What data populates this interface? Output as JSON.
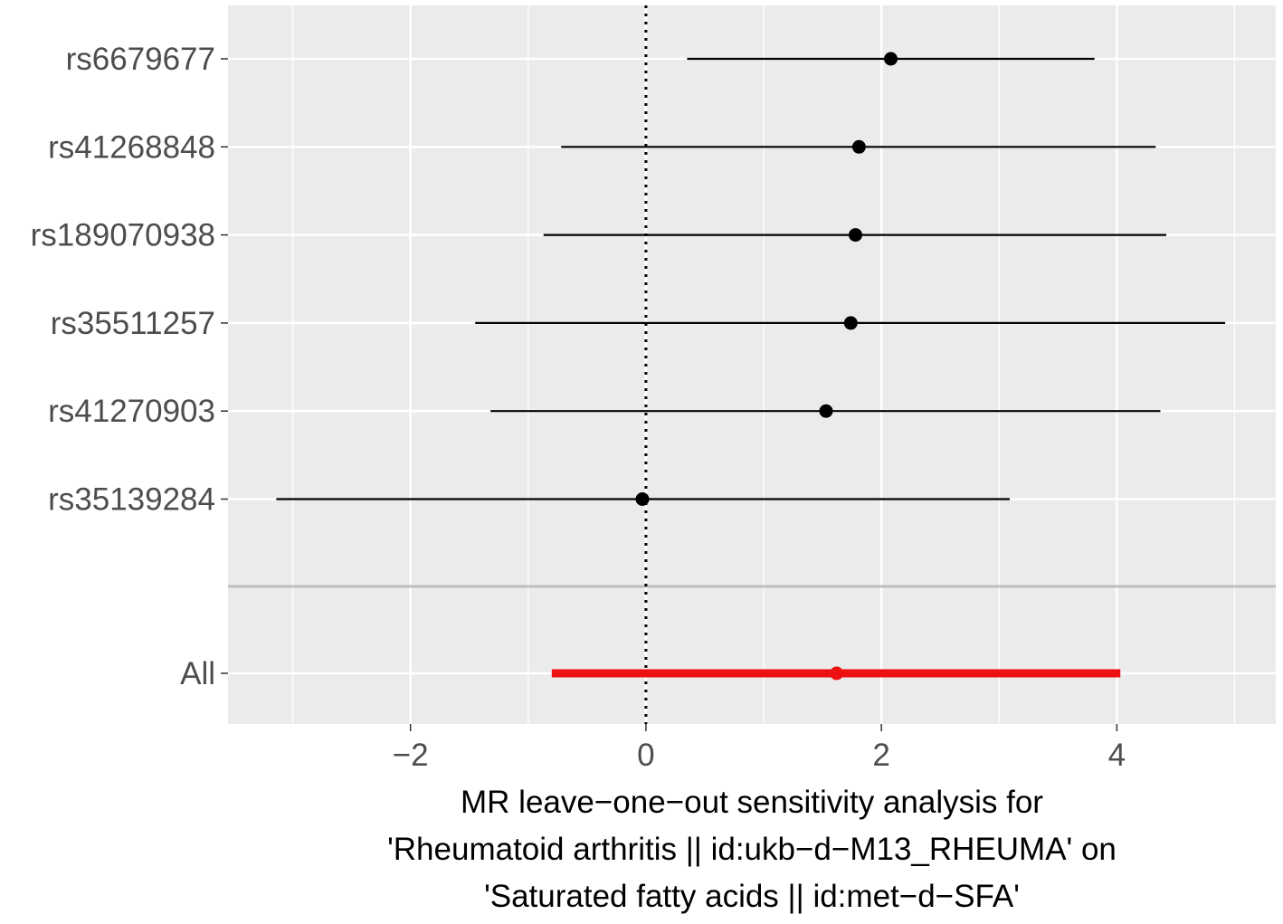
{
  "chart_data": {
    "type": "forest",
    "xlabel_lines": [
      "MR leave−one−out sensitivity analysis for",
      "'Rheumatoid arthritis || id:ukb−d−M13_RHEUMA' on",
      "'Saturated fatty acids || id:met−d−SFA'"
    ],
    "ylabel": "",
    "xlim": [
      -3.55,
      5.35
    ],
    "x_ticks": [
      -2,
      0,
      2,
      4
    ],
    "x_tick_labels": [
      "−2",
      "0",
      "2",
      "4"
    ],
    "reference_line": 0,
    "grid": true,
    "rows": [
      {
        "label": "rs6679677",
        "estimate": 2.08,
        "lower": 0.35,
        "upper": 3.81
      },
      {
        "label": "rs41268848",
        "estimate": 1.81,
        "lower": -0.72,
        "upper": 4.33
      },
      {
        "label": "rs189070938",
        "estimate": 1.78,
        "lower": -0.87,
        "upper": 4.42
      },
      {
        "label": "rs35511257",
        "estimate": 1.74,
        "lower": -1.45,
        "upper": 4.92
      },
      {
        "label": "rs41270903",
        "estimate": 1.53,
        "lower": -1.32,
        "upper": 4.37
      },
      {
        "label": "rs35139284",
        "estimate": -0.03,
        "lower": -3.14,
        "upper": 3.09
      }
    ],
    "summary": {
      "label": "All",
      "estimate": 1.62,
      "lower": -0.8,
      "upper": 4.03
    },
    "colors": {
      "panel": "#ebebeb",
      "grid": "#ffffff",
      "point": "#000000",
      "summary": "#ee1111",
      "separator": "#bebebe",
      "tick_text": "#4d4d4d"
    }
  }
}
